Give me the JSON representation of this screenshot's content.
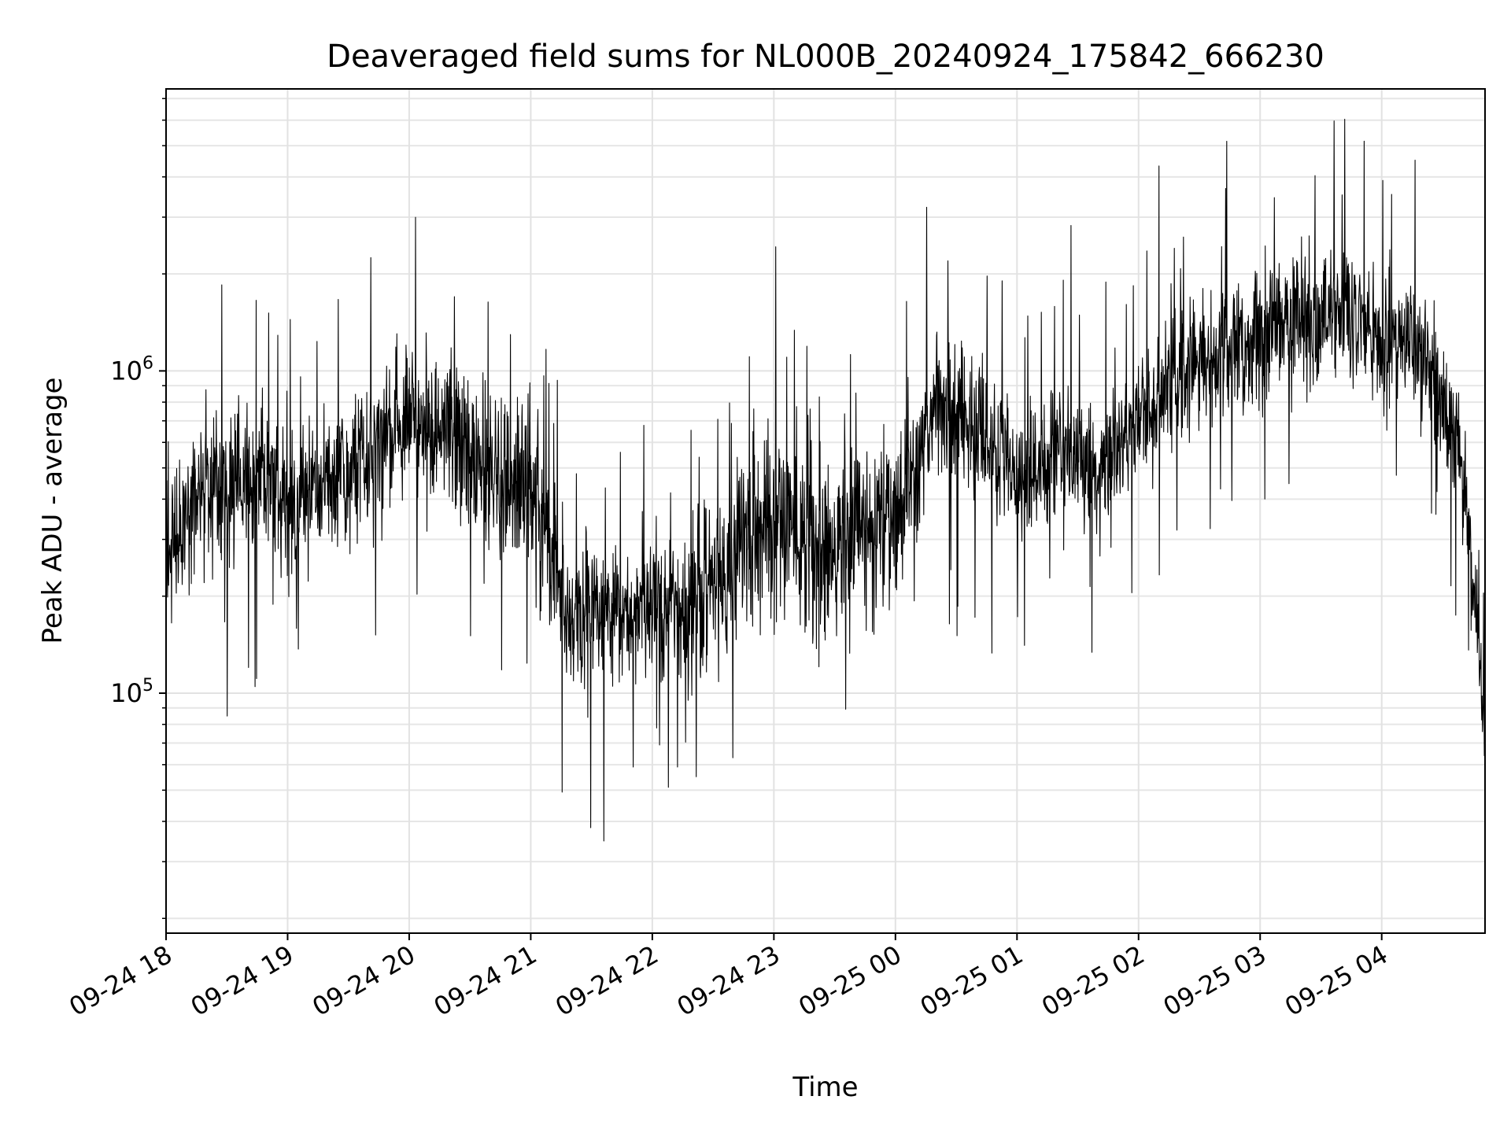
{
  "chart_data": {
    "type": "line",
    "title": "Deaveraged field sums for NL000B_20240924_175842_666230",
    "xlabel": "Time",
    "ylabel": "Peak ADU - average",
    "x_ticks": [
      "09-24 18",
      "09-24 19",
      "09-24 20",
      "09-24 21",
      "09-24 22",
      "09-24 23",
      "09-25 00",
      "09-25 01",
      "09-25 02",
      "09-25 03",
      "09-25 04"
    ],
    "xlim": [
      "2024-09-24 18:00",
      "2024-09-25 04:51"
    ],
    "yscale": "log",
    "ylim": [
      18000,
      7500000
    ],
    "y_ticks": [
      {
        "value": 100000,
        "base": "10",
        "exp": "5"
      },
      {
        "value": 1000000,
        "base": "10",
        "exp": "6"
      }
    ],
    "grid": "major and minor",
    "line_color": "#000000",
    "series": [
      {
        "x": [
          "2024-09-24 18:00",
          "2024-09-24 18:20",
          "2024-09-24 18:40",
          "2024-09-24 19:00",
          "2024-09-24 19:20",
          "2024-09-24 19:40",
          "2024-09-24 20:00",
          "2024-09-24 20:20",
          "2024-09-24 20:40",
          "2024-09-24 21:00",
          "2024-09-24 21:20",
          "2024-09-24 21:40",
          "2024-09-24 22:00",
          "2024-09-24 22:20",
          "2024-09-24 22:40",
          "2024-09-24 23:00",
          "2024-09-24 23:20",
          "2024-09-24 23:40",
          "2024-09-25 00:00",
          "2024-09-25 00:20",
          "2024-09-25 00:40",
          "2024-09-25 01:00",
          "2024-09-25 01:20",
          "2024-09-25 01:40",
          "2024-09-25 02:00",
          "2024-09-25 02:20",
          "2024-09-25 02:40",
          "2024-09-25 03:00",
          "2024-09-25 03:20",
          "2024-09-25 03:40",
          "2024-09-25 04:00",
          "2024-09-25 04:20",
          "2024-09-25 04:40",
          "2024-09-25 04:51"
        ],
        "y": [
          280000,
          420000,
          450000,
          380000,
          470000,
          560000,
          750000,
          650000,
          480000,
          450000,
          170000,
          180000,
          190000,
          190000,
          250000,
          380000,
          280000,
          300000,
          380000,
          750000,
          650000,
          480000,
          560000,
          500000,
          700000,
          950000,
          1150000,
          1250000,
          1400000,
          1600000,
          1250000,
          1200000,
          500000,
          80000
        ],
        "spread": [
          1.6,
          2.0,
          1.8,
          1.8,
          1.7,
          1.8,
          1.8,
          1.9,
          1.9,
          2.0,
          1.7,
          1.7,
          1.8,
          1.8,
          2.0,
          2.3,
          2.3,
          1.9,
          1.8,
          1.8,
          1.7,
          1.7,
          1.7,
          1.6,
          1.6,
          1.7,
          1.8,
          1.8,
          1.8,
          1.7,
          1.7,
          1.7,
          1.7,
          1.5
        ]
      }
    ]
  }
}
